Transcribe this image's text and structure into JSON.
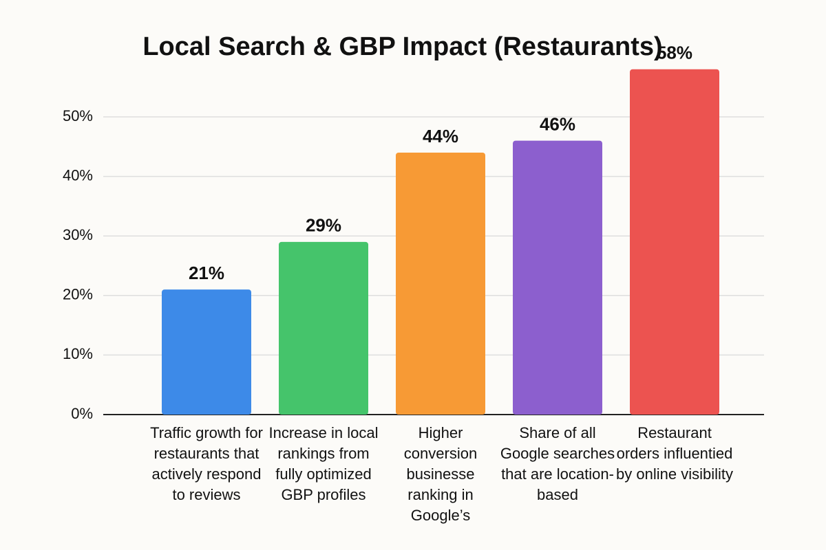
{
  "chart_data": {
    "type": "bar",
    "title": "Local Search & GBP Impact (Restaurants)",
    "categories": [
      "Traffic growth for restaurants that actively respond to reviews",
      "Increase in local rankings from fully optimized GBP profiles",
      "Higher conversion businesse ranking in Google’s",
      "Share of all Google searches that are location-based",
      "Restaurant orders influentied by online visibility"
    ],
    "values": [
      21,
      29,
      44,
      46,
      58
    ],
    "value_labels": [
      "21%",
      "29%",
      "44%",
      "46%",
      "58%"
    ],
    "colors": [
      "#3d8ae8",
      "#45c46b",
      "#f79a35",
      "#8c5fce",
      "#ec5350"
    ],
    "ylim": [
      0,
      50
    ],
    "yticks": [
      {
        "value": 0,
        "label": "0%"
      },
      {
        "value": 10,
        "label": "10%"
      },
      {
        "value": 20,
        "label": "20%"
      },
      {
        "value": 30,
        "label": "30%"
      },
      {
        "value": 40,
        "label": "40%"
      },
      {
        "value": 50,
        "label": "50%"
      }
    ],
    "grid": true
  }
}
